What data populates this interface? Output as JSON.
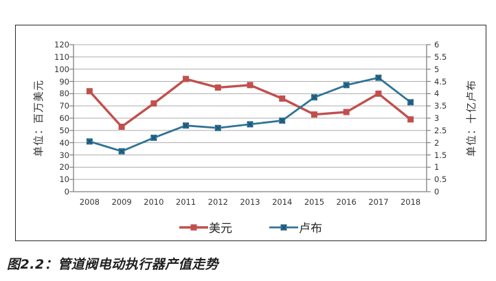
{
  "figure": {
    "caption": "图2.2：管道阀电动执行器产值走势"
  },
  "chart_data": {
    "type": "line",
    "categories": [
      "2008",
      "2009",
      "2010",
      "2011",
      "2012",
      "2013",
      "2014",
      "2015",
      "2016",
      "2017",
      "2018"
    ],
    "series": [
      {
        "key": "usd",
        "name": "美元",
        "axis": "left",
        "color": "#C0504D",
        "marker": "square",
        "line_width": 3.4,
        "values": [
          82,
          53,
          72,
          92,
          85,
          87,
          76,
          63,
          65,
          80,
          59
        ]
      },
      {
        "key": "rub",
        "name": "卢布",
        "axis": "right",
        "color": "#2F7396",
        "marker": "x-square",
        "marker_accent": "#1C5270",
        "line_width": 2.8,
        "values": [
          2.05,
          1.65,
          2.2,
          2.7,
          2.6,
          2.75,
          2.9,
          3.85,
          4.35,
          4.65,
          3.65
        ]
      }
    ],
    "left_axis": {
      "label": "单位：百万美元",
      "min": 0,
      "max": 120,
      "step": 10,
      "tick_labels": [
        "0",
        "10",
        "20",
        "30",
        "40",
        "50",
        "60",
        "70",
        "80",
        "90",
        "100",
        "110",
        "120"
      ]
    },
    "right_axis": {
      "label": "单位：十亿卢布",
      "min": 0,
      "max": 6,
      "step": 0.5,
      "tick_labels": [
        "0",
        "0.5",
        "1",
        "1.5",
        "2",
        "2.5",
        "3",
        "3.5",
        "4",
        "4.5",
        "5",
        "5.5",
        "6"
      ]
    },
    "legend_position": "bottom",
    "grid": true,
    "grid_color": "#ADADAD",
    "axis_color": "#7F7F7F"
  }
}
